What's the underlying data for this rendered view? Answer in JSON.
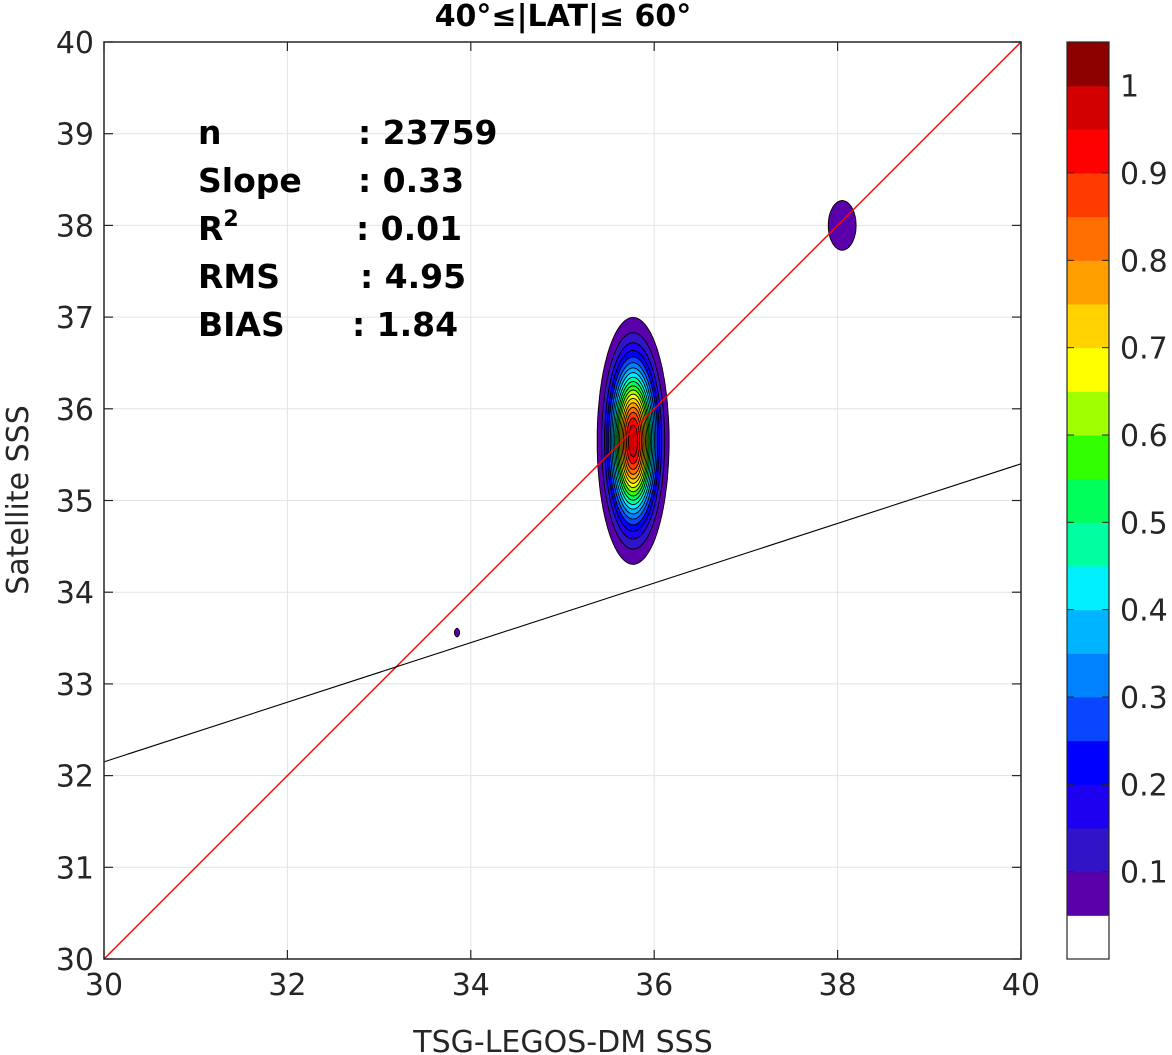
{
  "chart_data": {
    "type": "contour",
    "title": "40°≤|LAT|≤ 60°",
    "xlabel": "TSG-LEGOS-DM SSS",
    "ylabel": "Satellite SSS",
    "xlim": [
      30,
      40
    ],
    "ylim": [
      30,
      40
    ],
    "xticks": [
      "30",
      "32",
      "34",
      "36",
      "38",
      "40"
    ],
    "yticks": [
      "30",
      "31",
      "32",
      "33",
      "34",
      "35",
      "36",
      "37",
      "38",
      "39",
      "40"
    ],
    "grid": true,
    "stats": [
      {
        "label": "n",
        "value": ": 23759"
      },
      {
        "label": "Slope",
        "value": ": 0.33"
      },
      {
        "label": "R",
        "sup": "2",
        "value": ": 0.01"
      },
      {
        "label": "RMS",
        "value": ": 4.95"
      },
      {
        "label": "BIAS",
        "value": ": 1.84"
      }
    ],
    "identity_line": {
      "x": [
        30,
        40
      ],
      "y": [
        30,
        40
      ],
      "color": "#ff0000"
    },
    "regression_line": {
      "x": [
        30,
        40
      ],
      "y": [
        32.15,
        35.4
      ],
      "color": "#000000"
    },
    "density_peaks": [
      {
        "x": 35.77,
        "y": 35.65,
        "sx": 0.16,
        "sy": 0.55,
        "amp": 1.0
      },
      {
        "x": 38.05,
        "y": 38.0,
        "sx": 0.14,
        "sy": 0.25,
        "amp": 0.09
      },
      {
        "x": 33.85,
        "y": 33.56,
        "sx": 0.035,
        "sy": 0.06,
        "amp": 0.07
      }
    ],
    "colorbar": {
      "ticks": [
        "0.1",
        "0.2",
        "0.3",
        "0.4",
        "0.5",
        "0.6",
        "0.7",
        "0.8",
        "0.9",
        "1"
      ],
      "levels": [
        0,
        0.05,
        0.1,
        0.15,
        0.2,
        0.25,
        0.3,
        0.35,
        0.4,
        0.45,
        0.5,
        0.55,
        0.6,
        0.65,
        0.7,
        0.75,
        0.8,
        0.85,
        0.9,
        0.95,
        1.0
      ],
      "colors": [
        "#ffffff",
        "#5a00aa",
        "#3214c8",
        "#1e00f0",
        "#0000ff",
        "#0a46ff",
        "#0082ff",
        "#00b4ff",
        "#00f0ff",
        "#00ffa0",
        "#00ff5a",
        "#32ff00",
        "#a0ff00",
        "#ffff00",
        "#ffd200",
        "#ffa000",
        "#ff6e00",
        "#ff3c00",
        "#ff0000",
        "#d20000",
        "#8c0000"
      ]
    }
  }
}
